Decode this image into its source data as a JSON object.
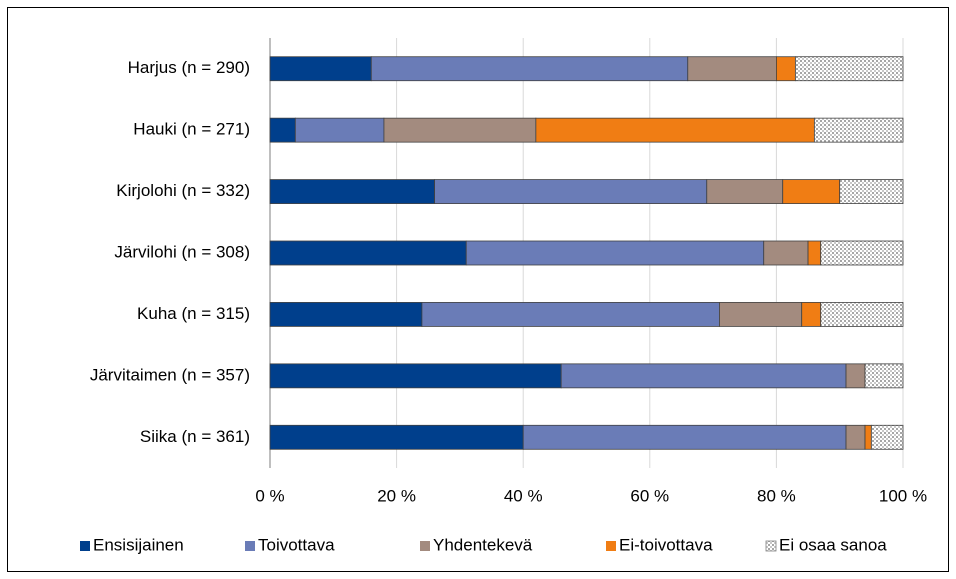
{
  "chart_data": {
    "type": "stacked-barh",
    "categories": [
      "Harjus (n = 290)",
      "Hauki (n = 271)",
      "Kirjolohi (n = 332)",
      "Järvilohi (n = 308)",
      "Kuha (n = 315)",
      "Järvitaimen (n = 357)",
      "Siika (n = 361)"
    ],
    "series": [
      {
        "name": "Ensisijainen",
        "color": "#003f8c",
        "values": [
          16,
          4,
          26,
          31,
          24,
          46,
          40
        ]
      },
      {
        "name": "Toivottava",
        "color": "#6a7cb7",
        "values": [
          50,
          14,
          43,
          47,
          47,
          45,
          51
        ]
      },
      {
        "name": "Yhdentekevä",
        "color": "#a38b7f",
        "values": [
          14,
          24,
          12,
          7,
          13,
          3,
          3
        ]
      },
      {
        "name": "Ei-toivottava",
        "color": "#f07d14",
        "values": [
          3,
          44,
          9,
          2,
          3,
          0,
          1
        ]
      },
      {
        "name": "Ei osaa sanoa",
        "color": "#d9d9d9",
        "pattern": "dots",
        "values": [
          17,
          14,
          10,
          13,
          13,
          6,
          5
        ]
      }
    ],
    "xlim": [
      0,
      100
    ],
    "xticks": [
      {
        "value": 0,
        "label": "0 %"
      },
      {
        "value": 20,
        "label": "20 %"
      },
      {
        "value": 40,
        "label": "40 %"
      },
      {
        "value": 60,
        "label": "60 %"
      },
      {
        "value": 80,
        "label": "80 %"
      },
      {
        "value": 100,
        "label": "100 %"
      }
    ],
    "grid": true,
    "legend": "bottom"
  }
}
